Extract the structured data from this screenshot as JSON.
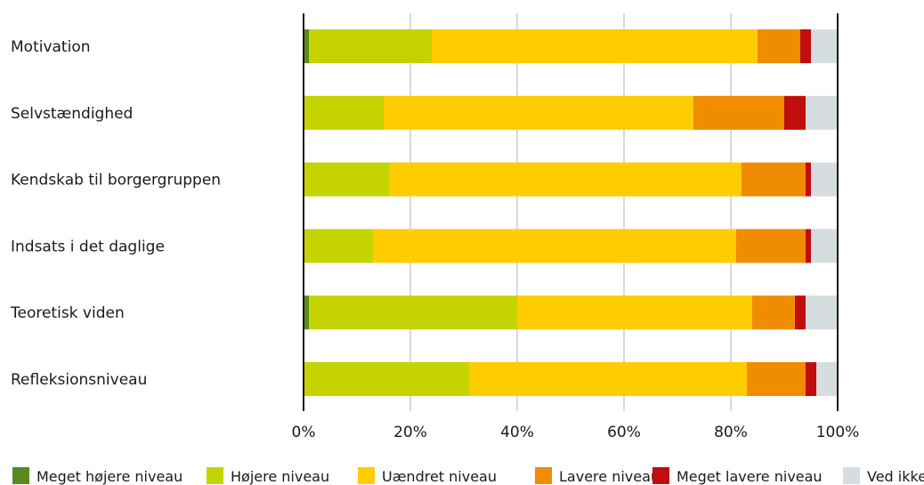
{
  "chart_data": {
    "type": "bar",
    "orientation": "horizontal",
    "stacked": true,
    "title": "",
    "xlabel": "",
    "ylabel": "",
    "xlim": [
      0,
      100
    ],
    "x_ticks": [
      "0%",
      "20%",
      "40%",
      "60%",
      "80%",
      "100%"
    ],
    "grid": true,
    "legend_position": "bottom",
    "categories": [
      "Motivation",
      "Selvstændighed",
      "Kendskab til borgergruppen",
      "Indsats i det daglige",
      "Teoretisk viden",
      "Refleksionsniveau"
    ],
    "series": [
      {
        "name": "Meget højere niveau",
        "color": "#5a8a1f",
        "values": [
          1,
          0,
          0,
          0,
          1,
          0
        ]
      },
      {
        "name": "Højere niveau",
        "color": "#c5d300",
        "values": [
          23,
          15,
          16,
          13,
          39,
          31
        ]
      },
      {
        "name": "Uændret niveau",
        "color": "#ffcc00",
        "values": [
          61,
          58,
          66,
          68,
          44,
          52
        ]
      },
      {
        "name": "Lavere niveau",
        "color": "#f08c00",
        "values": [
          8,
          17,
          12,
          13,
          8,
          11
        ]
      },
      {
        "name": "Meget lavere niveau",
        "color": "#c00d0d",
        "values": [
          2,
          4,
          1,
          1,
          2,
          2
        ]
      },
      {
        "name": "Ved ikke",
        "color": "#d5dde0",
        "values": [
          5,
          6,
          5,
          5,
          6,
          4
        ]
      }
    ]
  }
}
